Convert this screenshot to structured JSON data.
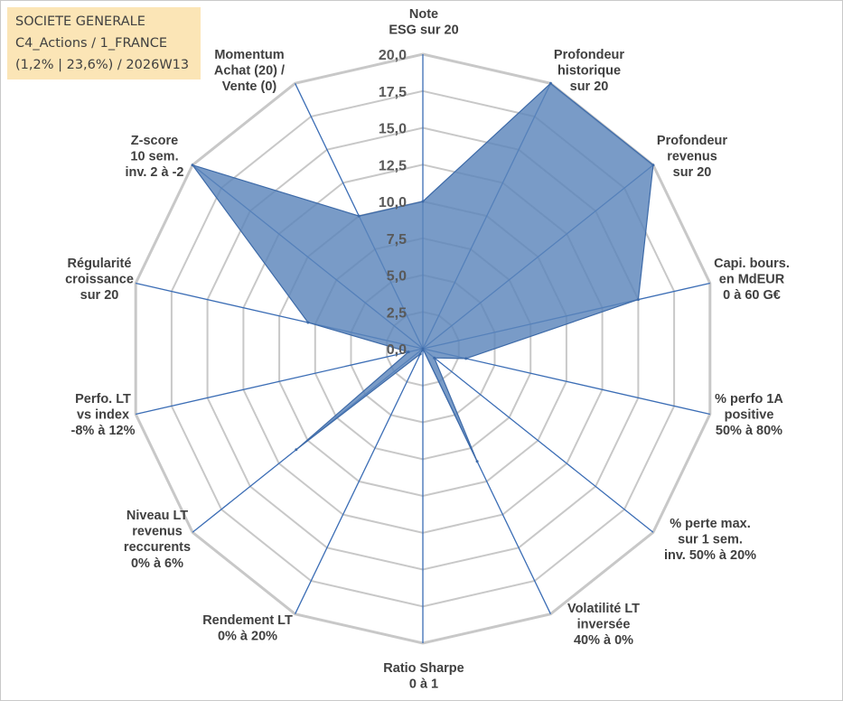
{
  "info": {
    "line1": "SOCIETE GENERALE",
    "line2": "C4_Actions / 1_FRANCE",
    "line3": "(1,2% | 23,6%) / 2026W13"
  },
  "colors": {
    "grid": "#c8c8c8",
    "spoke": "#3b6db5",
    "fill": "#5b85bb",
    "fill_stroke": "#3d6aa8",
    "info_bg": "#fbe5b6"
  },
  "chart_data": {
    "type": "radar",
    "title": "",
    "rlim": [
      0,
      20
    ],
    "r_step": 2.5,
    "grid": true,
    "tick_labels": [
      "0,0",
      "2,5",
      "5,0",
      "7,5",
      "10,0",
      "12,5",
      "15,0",
      "17,5",
      "20,0"
    ],
    "axes": [
      {
        "label": [
          "Note",
          "ESG sur 20"
        ],
        "value": 10
      },
      {
        "label": [
          "Profondeur",
          "historique",
          "sur 20"
        ],
        "value": 20
      },
      {
        "label": [
          "Profondeur",
          "revenus",
          "sur 20"
        ],
        "value": 20
      },
      {
        "label": [
          "Capi. bours.",
          "en MdEUR",
          "0 à 60 G€"
        ],
        "value": 15
      },
      {
        "label": [
          "% perfo 1A",
          "positive",
          "50% à 80%"
        ],
        "value": 3
      },
      {
        "label": [
          "% perte max.",
          "sur 1 sem.",
          "inv. 50% à 20%"
        ],
        "value": 1
      },
      {
        "label": [
          "Volatilité LT",
          "inversée",
          "40% à 0%"
        ],
        "value": 8.5
      },
      {
        "label": [
          "Ratio Sharpe",
          "0 à 1"
        ],
        "value": 0
      },
      {
        "label": [
          "Rendement LT",
          "0% à 20%"
        ],
        "value": 0.4
      },
      {
        "label": [
          "Niveau LT",
          "revenus",
          "reccurents",
          "0% à 6%"
        ],
        "value": 11
      },
      {
        "label": [
          "Perfo. LT",
          "vs index",
          "-8% à 12%"
        ],
        "value": 1
      },
      {
        "label": [
          "Régularité",
          "croissance",
          "sur 20"
        ],
        "value": 8
      },
      {
        "label": [
          "Z-score",
          "10 sem.",
          "inv. 2 à -2"
        ],
        "value": 20
      },
      {
        "label": [
          "Momentum",
          "Achat (20) /",
          "Vente (0)"
        ],
        "value": 10
      }
    ]
  }
}
